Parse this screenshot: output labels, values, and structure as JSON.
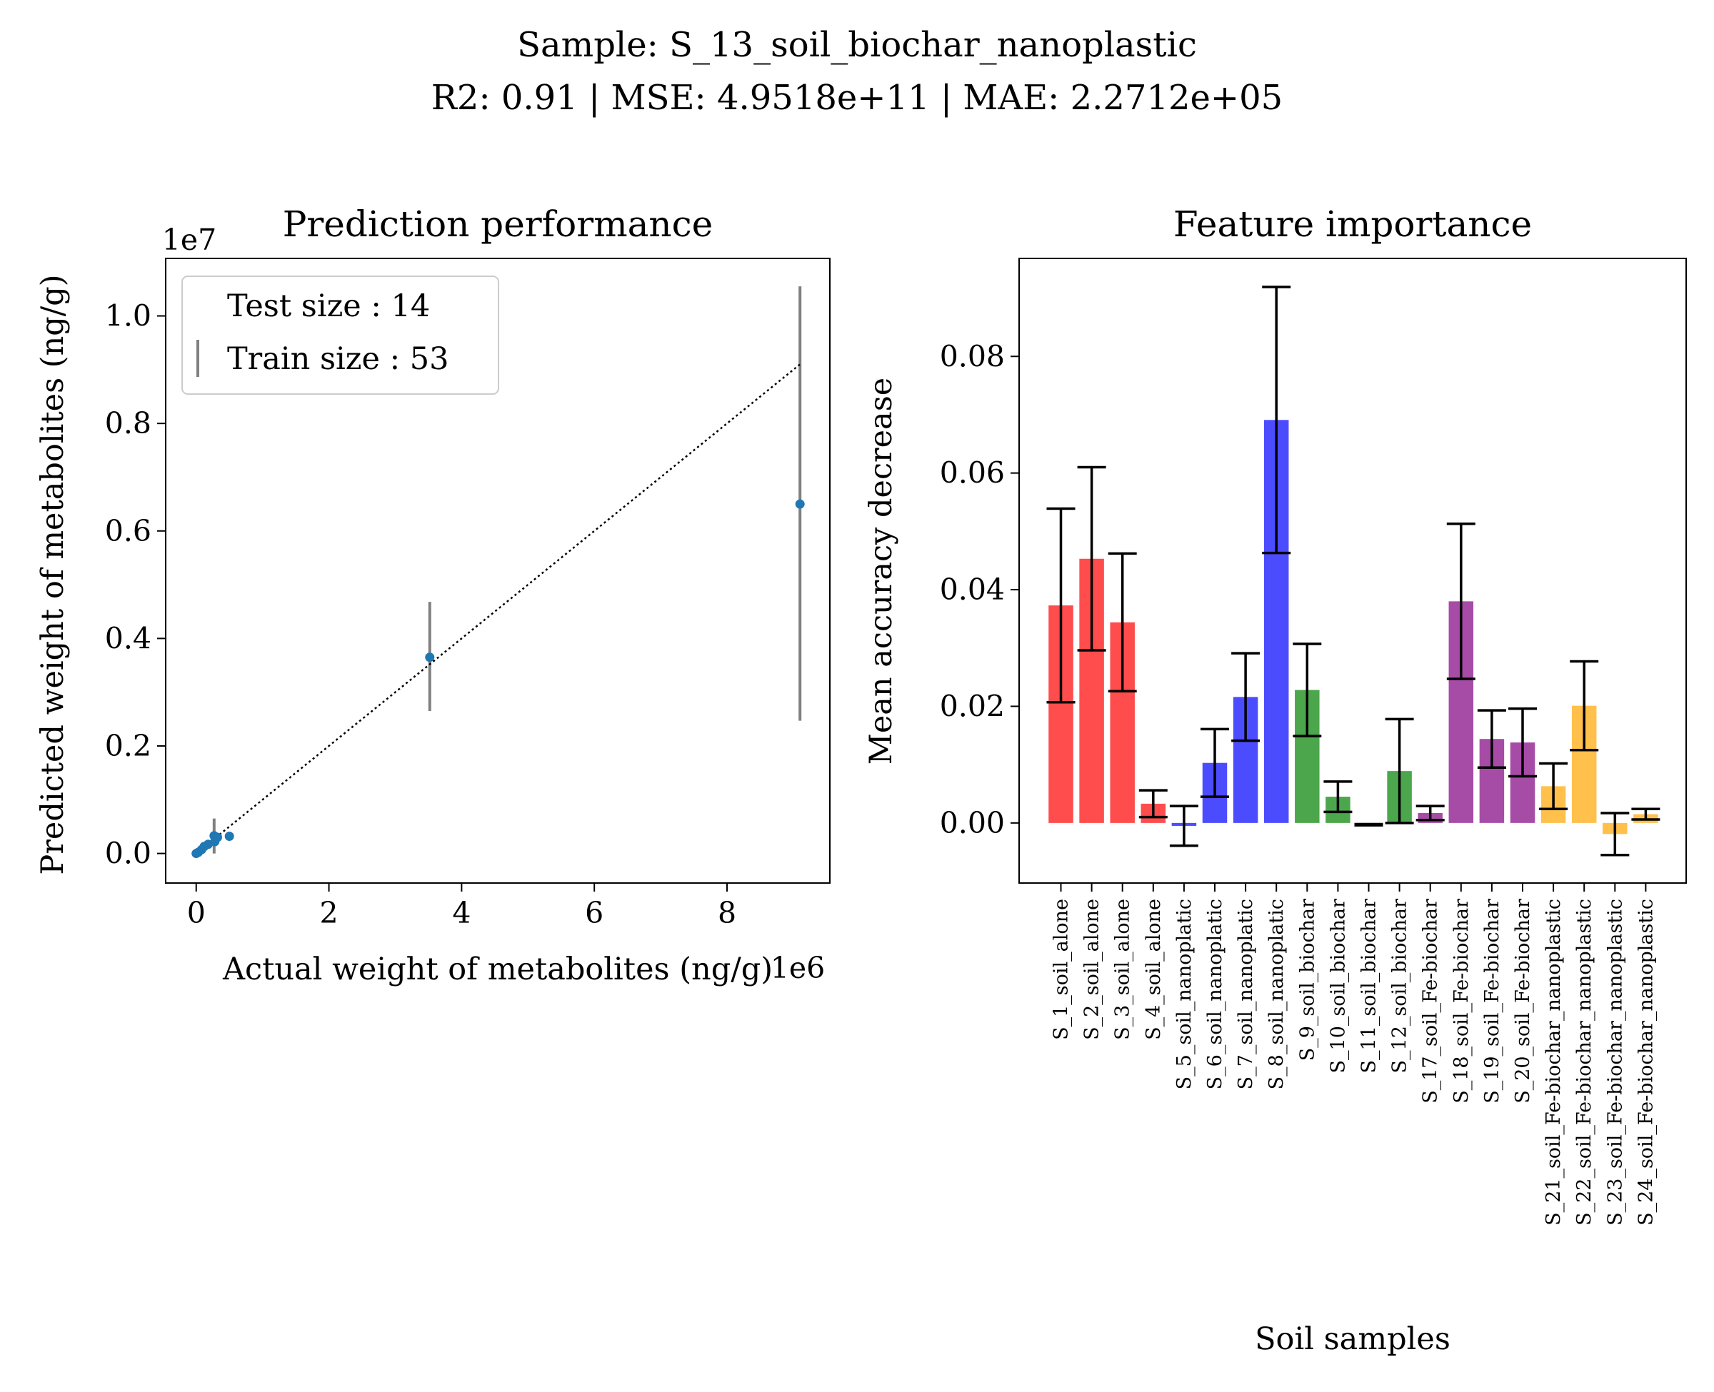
{
  "suptitle": {
    "line1": "Sample: S_13_soil_biochar_nanoplastic",
    "line2": "R2: 0.91 | MSE: 4.9518e+11 | MAE: 2.2712e+05"
  },
  "chart_data": [
    {
      "type": "scatter",
      "title": "Prediction performance",
      "xlabel": "Actual weight of metabolites (ng/g)",
      "ylabel": "Predicted weight of metabolites (ng/g)",
      "x_offset_text": "1e6",
      "y_offset_text": "1e7",
      "xlim": [
        -0.46,
        9.55
      ],
      "ylim": [
        -0.055,
        1.107
      ],
      "x_ticks": [
        0,
        2,
        4,
        6,
        8
      ],
      "x_tick_labels": [
        "0",
        "2",
        "4",
        "6",
        "8"
      ],
      "y_ticks": [
        0.0,
        0.2,
        0.4,
        0.6,
        0.8,
        1.0
      ],
      "y_tick_labels": [
        "0.0",
        "0.2",
        "0.4",
        "0.6",
        "0.8",
        "1.0"
      ],
      "legend": {
        "placement": "upper-left",
        "entries": [
          "Test size : 14",
          "Train size : 53"
        ]
      },
      "points": [
        {
          "x": 0.0,
          "y": 0.0
        },
        {
          "x": 0.03,
          "y": 0.002
        },
        {
          "x": 0.08,
          "y": 0.007
        },
        {
          "x": 0.12,
          "y": 0.013
        },
        {
          "x": 0.18,
          "y": 0.017
        },
        {
          "x": 0.28,
          "y": 0.022
        },
        {
          "x": 0.27,
          "y": 0.033
        },
        {
          "x": 0.32,
          "y": 0.03
        },
        {
          "x": 0.5,
          "y": 0.032
        },
        {
          "x": 3.52,
          "y": 0.365
        },
        {
          "x": 9.1,
          "y": 0.65
        }
      ],
      "error_bars": [
        {
          "x": 0.27,
          "y_low": 0.0,
          "y_high": 0.065
        },
        {
          "x": 3.52,
          "y_low": 0.265,
          "y_high": 0.468
        },
        {
          "x": 9.1,
          "y_low": 0.247,
          "y_high": 1.055
        }
      ],
      "trend_line": {
        "x": [
          0.0,
          9.1
        ],
        "y": [
          0.0,
          0.91
        ]
      },
      "colors": {
        "points": "#1f77b4",
        "error_bars": "#808080",
        "trend_line": "#000000"
      }
    },
    {
      "type": "bar",
      "title": "Feature importance",
      "xlabel": "Soil samples",
      "ylabel": "Mean accuracy decrease",
      "ylim": [
        -0.0103,
        0.0968
      ],
      "y_ticks": [
        0.0,
        0.02,
        0.04,
        0.06,
        0.08
      ],
      "y_tick_labels": [
        "0.00",
        "0.02",
        "0.04",
        "0.06",
        "0.08"
      ],
      "categories": [
        "S_1_soil_alone",
        "S_2_soil_alone",
        "S_3_soil_alone",
        "S_4_soil_alone",
        "S_5_soil_nanoplatic",
        "S_6_soil_nanoplatic",
        "S_7_soil_nanoplatic",
        "S_8_soil_nanoplatic",
        "S_9_soil_biochar",
        "S_10_soil_biochar",
        "S_11_soil_biochar",
        "S_12_soil_biochar",
        "S_17_soil_Fe-biochar",
        "S_18_soil_Fe-biochar",
        "S_19_soil_Fe-biochar",
        "S_20_soil_Fe-biochar",
        "S_21_soil_Fe-biochar_nanoplastic",
        "S_22_soil_Fe-biochar_nanoplastic",
        "S_23_soil_Fe-biochar_nanoplastic",
        "S_24_soil_Fe-biochar_nanoplastic"
      ],
      "values": [
        0.0373,
        0.0453,
        0.0344,
        0.0033,
        -0.0005,
        0.0103,
        0.0216,
        0.0691,
        0.0228,
        0.0045,
        -0.0003,
        0.0089,
        0.0017,
        0.038,
        0.0144,
        0.0138,
        0.0063,
        0.0201,
        -0.0019,
        0.0015
      ],
      "errors": [
        0.0166,
        0.0157,
        0.0118,
        0.0023,
        0.0034,
        0.0058,
        0.0075,
        0.0228,
        0.0079,
        0.0026,
        0.0001,
        0.0089,
        0.0012,
        0.0133,
        0.0049,
        0.0058,
        0.0039,
        0.0076,
        0.0036,
        0.0009
      ],
      "bar_colors": [
        "#ff0000",
        "#ff0000",
        "#ff0000",
        "#ff0000",
        "#0000ff",
        "#0000ff",
        "#0000ff",
        "#0000ff",
        "#008000",
        "#008000",
        "#008000",
        "#008000",
        "#800080",
        "#800080",
        "#800080",
        "#800080",
        "#ffa500",
        "#ffa500",
        "#ffa500",
        "#ffa500"
      ],
      "bar_alpha": 0.7,
      "error_bar_color": "#000000"
    }
  ]
}
